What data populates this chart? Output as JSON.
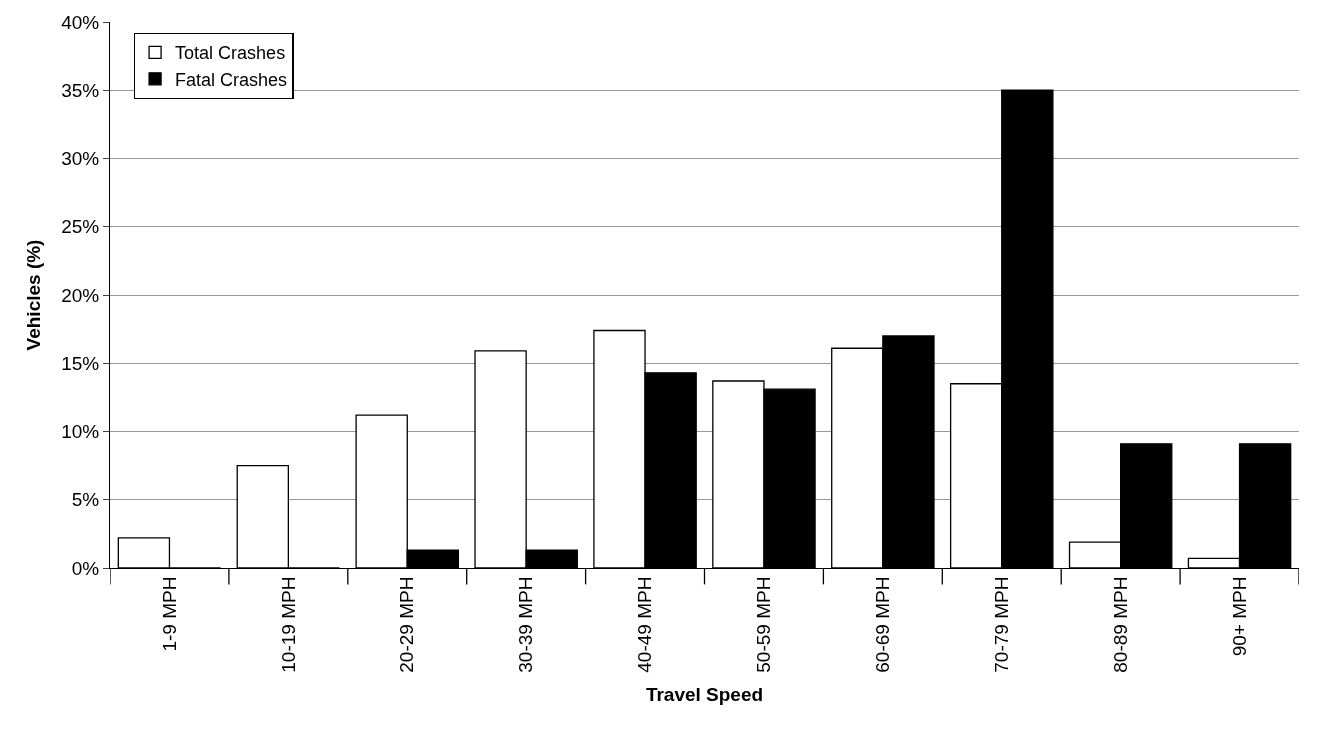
{
  "chart_data": {
    "type": "bar",
    "xlabel": "Travel Speed",
    "ylabel": "Vehicles (%)",
    "categories": [
      "1-9 MPH",
      "10-19 MPH",
      "20-29 MPH",
      "30-39 MPH",
      "40-49 MPH",
      "50-59 MPH",
      "60-69 MPH",
      "70-79 MPH",
      "80-89 MPH",
      "90+ MPH"
    ],
    "series": [
      {
        "name": "Total Crashes",
        "color": "#ffffff",
        "values": [
          2.2,
          7.5,
          11.2,
          15.9,
          17.4,
          13.7,
          16.1,
          13.5,
          1.9,
          0.7
        ]
      },
      {
        "name": "Fatal Crashes",
        "color": "#000000",
        "values": [
          0,
          0,
          1.3,
          1.3,
          14.3,
          13.1,
          17.0,
          35.0,
          9.1,
          9.1
        ]
      }
    ],
    "ylim": [
      0,
      40
    ],
    "yticks": [
      {
        "value": 0,
        "label": "0%"
      },
      {
        "value": 5,
        "label": "5%"
      },
      {
        "value": 10,
        "label": "10%"
      },
      {
        "value": 15,
        "label": "15%"
      },
      {
        "value": 20,
        "label": "20%"
      },
      {
        "value": 25,
        "label": "25%"
      },
      {
        "value": 30,
        "label": "30%"
      },
      {
        "value": 35,
        "label": "35%"
      },
      {
        "value": 40,
        "label": "40%"
      }
    ],
    "grid": "y",
    "legend": "top left"
  }
}
